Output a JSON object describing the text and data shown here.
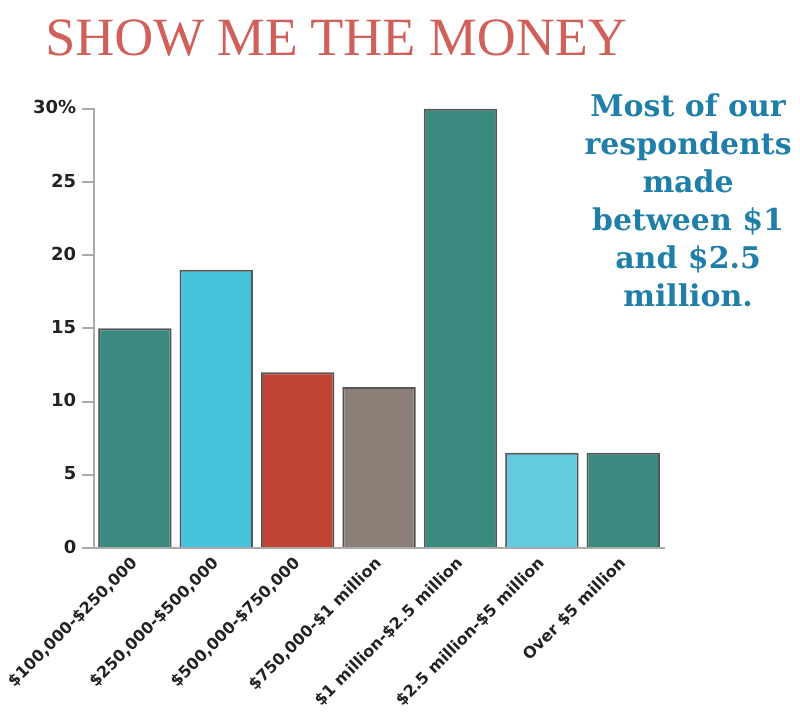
{
  "chart_data": {
    "type": "bar",
    "title": "SHOW ME THE MONEY",
    "categories": [
      "$100,000-$250,000",
      "$250,000-$500,000",
      "$500,000-$750,000",
      "$750,000-$1 million",
      "$1 million-$2.5 million",
      "$2.5 million-$5 million",
      "Over $5 million"
    ],
    "values": [
      15,
      19,
      12,
      11,
      30,
      6.5,
      6.5
    ],
    "colors": [
      "#3a8a80",
      "#45c3da",
      "#c04434",
      "#8c7f77",
      "#3a8a80",
      "#62cbe0",
      "#3a8a80"
    ],
    "ylim": [
      0,
      30
    ],
    "yticks": [
      0,
      5,
      10,
      15,
      20,
      25,
      {
        "value": 30,
        "label": "30%"
      }
    ],
    "grid": false,
    "legend": false,
    "annotations": [
      "Most of our respondents made between $1 and $2.5 million."
    ]
  }
}
